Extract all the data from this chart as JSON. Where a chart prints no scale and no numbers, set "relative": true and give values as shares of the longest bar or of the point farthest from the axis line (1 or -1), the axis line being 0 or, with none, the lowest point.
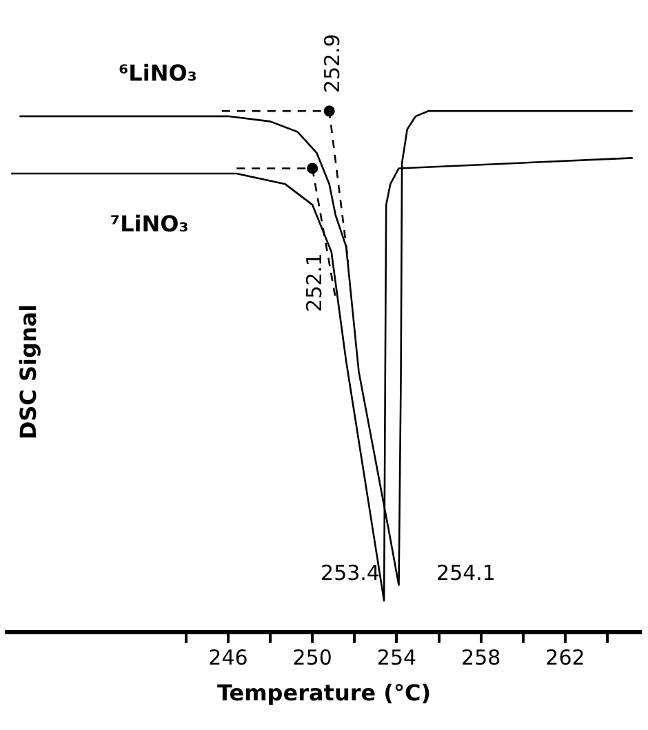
{
  "chart_data": {
    "type": "line",
    "relative": true,
    "xlabel": "Temperature (°C)",
    "ylabel": "DSC Signal",
    "xlim": [
      235.5,
      265.6
    ],
    "xticks": [
      {
        "value": 244,
        "label": null
      },
      246,
      {
        "value": 248,
        "label": null
      },
      250,
      {
        "value": 252,
        "label": null
      },
      254,
      {
        "value": 256,
        "label": null
      },
      258,
      {
        "value": 260,
        "label": null
      },
      262,
      {
        "value": 264,
        "label": null
      }
    ],
    "legend": false,
    "grid": false,
    "marker": "none",
    "line_style": "solid",
    "tick_labels": "x",
    "series": [
      {
        "name": "⁶LiNO₃",
        "type": "line",
        "color": "#000000",
        "x": [
          236.1,
          246,
          248,
          249.3,
          250.2,
          250.8,
          251.1,
          251.6,
          252.2,
          253.6,
          254.1,
          254.2,
          254.25,
          254.5,
          254.9,
          255.5,
          265.2
        ],
        "values": [
          0.99,
          0.99,
          0.98,
          0.96,
          0.92,
          0.86,
          0.8,
          0.74,
          0.5,
          0.2,
          0.09,
          0.49,
          0.9,
          0.965,
          0.99,
          1.0,
          1.0
        ]
      },
      {
        "name": "⁷LiNO₃",
        "type": "line",
        "color": "#000000",
        "x": [
          235.7,
          246.4,
          248.7,
          250,
          250.9,
          251.6,
          253.4,
          253.45,
          253.5,
          253.7,
          254.1,
          265.2
        ],
        "values": [
          0.88,
          0.88,
          0.86,
          0.82,
          0.73,
          0.52,
          0.06,
          0.45,
          0.82,
          0.86,
          0.89,
          0.91
        ]
      },
      {
        "type": "line",
        "line_style": "dashed",
        "color": "#000000",
        "x": [
          245.7,
          250.8,
          251.7
        ],
        "values": [
          1.0,
          1.0,
          0.71
        ]
      },
      {
        "type": "line",
        "line_style": "dashed",
        "color": "#000000",
        "x": [
          246.4,
          250,
          251.1
        ],
        "values": [
          0.89,
          0.89,
          0.64
        ]
      },
      {
        "type": "scatter",
        "marker": "circle",
        "color": "#000000",
        "x": [
          250.8,
          250
        ],
        "values": [
          1.0,
          0.89
        ]
      }
    ],
    "annotations": [
      "252.9",
      "252.1",
      "253.4",
      "254.1"
    ]
  }
}
